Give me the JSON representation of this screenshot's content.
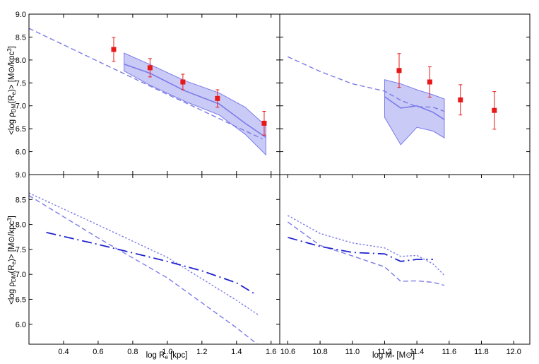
{
  "chart_data": [
    {
      "type": "line",
      "panel": "top-left",
      "xlim": [
        0.2,
        1.65
      ],
      "ylim": [
        5.5,
        9.0
      ],
      "xticks": [
        0.4,
        0.6,
        0.8,
        1.0,
        1.2,
        1.4,
        1.6
      ],
      "yticks": [
        6.0,
        6.5,
        7.0,
        7.5,
        8.0,
        8.5,
        9.0
      ],
      "ylabel": "<log ρDM(Re)> [M⊙/kpc³]",
      "colors": {
        "model": "#7b7be8",
        "band": "#b8b8f4",
        "data": "#e81818"
      },
      "series": [
        {
          "style": "dashed",
          "x": [
            0.2,
            0.4,
            0.6,
            0.8,
            1.0,
            1.2,
            1.4,
            1.55
          ],
          "y": [
            8.69,
            8.33,
            7.97,
            7.61,
            7.25,
            6.9,
            6.54,
            6.28
          ]
        },
        {
          "style": "solid",
          "x": [
            0.75,
            0.9,
            1.1,
            1.3,
            1.45,
            1.57
          ],
          "y": [
            7.91,
            7.71,
            7.33,
            7.04,
            6.62,
            6.31
          ]
        },
        {
          "style": "band",
          "x": [
            0.75,
            0.9,
            1.1,
            1.3,
            1.45,
            1.57
          ],
          "upper": [
            8.15,
            7.9,
            7.55,
            7.28,
            6.97,
            6.56
          ],
          "lower": [
            7.76,
            7.45,
            7.1,
            6.8,
            6.38,
            5.93
          ]
        },
        {
          "style": "points",
          "x": [
            0.69,
            0.9,
            1.09,
            1.29,
            1.56
          ],
          "y": [
            8.23,
            7.83,
            7.52,
            7.16,
            6.62
          ],
          "yerr": [
            0.26,
            0.2,
            0.17,
            0.19,
            0.26
          ]
        }
      ]
    },
    {
      "type": "line",
      "panel": "top-right",
      "xlim": [
        10.55,
        12.1
      ],
      "ylim": [
        5.5,
        9.0
      ],
      "yticks": [
        6.0,
        6.5,
        7.0,
        7.5,
        8.0,
        8.5,
        9.0
      ],
      "series": [
        {
          "style": "dashed",
          "x": [
            10.6,
            10.8,
            11.0,
            11.2,
            11.3,
            11.4,
            11.5,
            11.57
          ],
          "y": [
            8.07,
            7.75,
            7.48,
            7.32,
            7.12,
            6.98,
            6.97,
            6.88
          ]
        },
        {
          "style": "solid",
          "x": [
            11.2,
            11.3,
            11.4,
            11.5,
            11.57
          ],
          "y": [
            7.2,
            6.95,
            7.0,
            6.86,
            6.7
          ]
        },
        {
          "style": "band",
          "x": [
            11.2,
            11.3,
            11.4,
            11.5,
            11.57
          ],
          "upper": [
            7.57,
            7.48,
            7.35,
            7.24,
            7.15
          ],
          "lower": [
            6.75,
            6.15,
            6.53,
            6.45,
            6.3
          ]
        },
        {
          "style": "points",
          "x": [
            11.29,
            11.48,
            11.67,
            11.88
          ],
          "y": [
            7.77,
            7.52,
            7.13,
            6.9
          ],
          "yerr": [
            0.37,
            0.33,
            0.33,
            0.41
          ]
        }
      ]
    },
    {
      "type": "line",
      "panel": "bottom-left",
      "xlim": [
        0.2,
        1.65
      ],
      "ylim": [
        5.6,
        9.0
      ],
      "xticks": [
        0.4,
        0.6,
        0.8,
        1.0,
        1.2,
        1.4,
        1.6
      ],
      "yticks": [
        6.0,
        6.5,
        7.0,
        7.5,
        8.0,
        8.5,
        9.0
      ],
      "xlabel": "log Re [kpc]",
      "ylabel": "<log ρDM(Re)> [M⊙/kpc³]",
      "colors": {
        "dashdot": "#1f22cc",
        "model": "#7b7be8"
      },
      "series": [
        {
          "style": "dotted",
          "x": [
            0.2,
            0.6,
            1.0,
            1.4,
            1.53
          ],
          "y": [
            8.63,
            7.99,
            7.34,
            6.48,
            6.18
          ]
        },
        {
          "style": "dashed",
          "x": [
            0.2,
            0.6,
            1.0,
            1.4,
            1.52
          ],
          "y": [
            8.58,
            7.73,
            6.93,
            5.93,
            5.6
          ]
        },
        {
          "style": "dashdot",
          "x": [
            0.3,
            0.6,
            0.8,
            1.0,
            1.2,
            1.4,
            1.5
          ],
          "y": [
            7.84,
            7.6,
            7.43,
            7.26,
            7.07,
            6.83,
            6.62
          ]
        }
      ]
    },
    {
      "type": "line",
      "panel": "bottom-right",
      "xlim": [
        10.55,
        12.1
      ],
      "ylim": [
        5.6,
        9.0
      ],
      "xticks": [
        10.6,
        10.8,
        11.0,
        11.2,
        11.4,
        11.6,
        11.8,
        12.0
      ],
      "xlabel": "log M* [M⊙]",
      "series": [
        {
          "style": "dotted",
          "x": [
            10.6,
            10.8,
            11.0,
            11.2,
            11.3,
            11.4,
            11.5,
            11.57
          ],
          "y": [
            8.18,
            7.82,
            7.63,
            7.53,
            7.36,
            7.38,
            7.21,
            6.98
          ]
        },
        {
          "style": "dashed",
          "x": [
            10.6,
            10.8,
            11.0,
            11.2,
            11.3,
            11.4,
            11.5,
            11.57
          ],
          "y": [
            8.05,
            7.58,
            7.37,
            7.15,
            6.86,
            6.87,
            6.84,
            6.78
          ]
        },
        {
          "style": "dashdot",
          "x": [
            10.6,
            10.8,
            11.0,
            11.2,
            11.3,
            11.4,
            11.5
          ],
          "y": [
            7.74,
            7.56,
            7.44,
            7.41,
            7.26,
            7.3,
            7.3
          ]
        }
      ]
    }
  ]
}
